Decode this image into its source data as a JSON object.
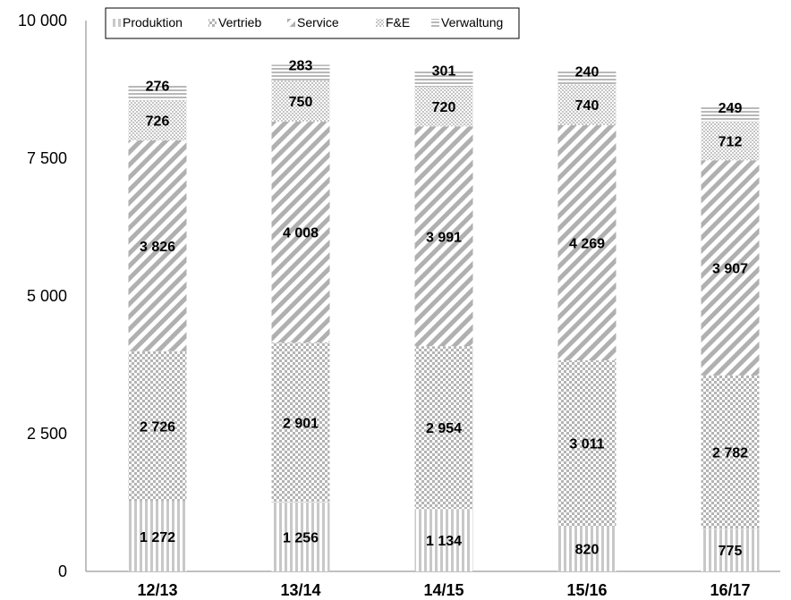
{
  "chart_data": {
    "type": "bar",
    "stacked": true,
    "categories": [
      "12/13",
      "13/14",
      "14/15",
      "15/16",
      "16/17"
    ],
    "series": [
      {
        "name": "Produktion",
        "values": [
          1272,
          1256,
          1134,
          820,
          775
        ],
        "value_labels": [
          "1 272",
          "1 256",
          "1 134",
          "820",
          "775"
        ],
        "pattern": "vertical-lines"
      },
      {
        "name": "Vertrieb",
        "values": [
          2726,
          2901,
          2954,
          3011,
          2782
        ],
        "value_labels": [
          "2 726",
          "2 901",
          "2 954",
          "3 011",
          "2 782"
        ],
        "pattern": "checker"
      },
      {
        "name": "Service",
        "values": [
          3826,
          4008,
          3991,
          4269,
          3907
        ],
        "value_labels": [
          "3 826",
          "4 008",
          "3 991",
          "4 269",
          "3 907"
        ],
        "pattern": "diagonal-lines"
      },
      {
        "name": "F&E",
        "values": [
          726,
          750,
          720,
          740,
          712
        ],
        "value_labels": [
          "726",
          "750",
          "720",
          "740",
          "712"
        ],
        "pattern": "fine-checker"
      },
      {
        "name": "Verwaltung",
        "values": [
          276,
          283,
          301,
          240,
          249
        ],
        "value_labels": [
          "276",
          "283",
          "301",
          "240",
          "249"
        ],
        "pattern": "horizontal-lines"
      }
    ],
    "ylim": [
      0,
      10000
    ],
    "yticks": [
      0,
      2500,
      5000,
      7500,
      10000
    ],
    "ytick_labels": [
      "0",
      "2 500",
      "5 000",
      "7 500",
      "10 000"
    ],
    "grid": false,
    "legend_position": "top"
  }
}
